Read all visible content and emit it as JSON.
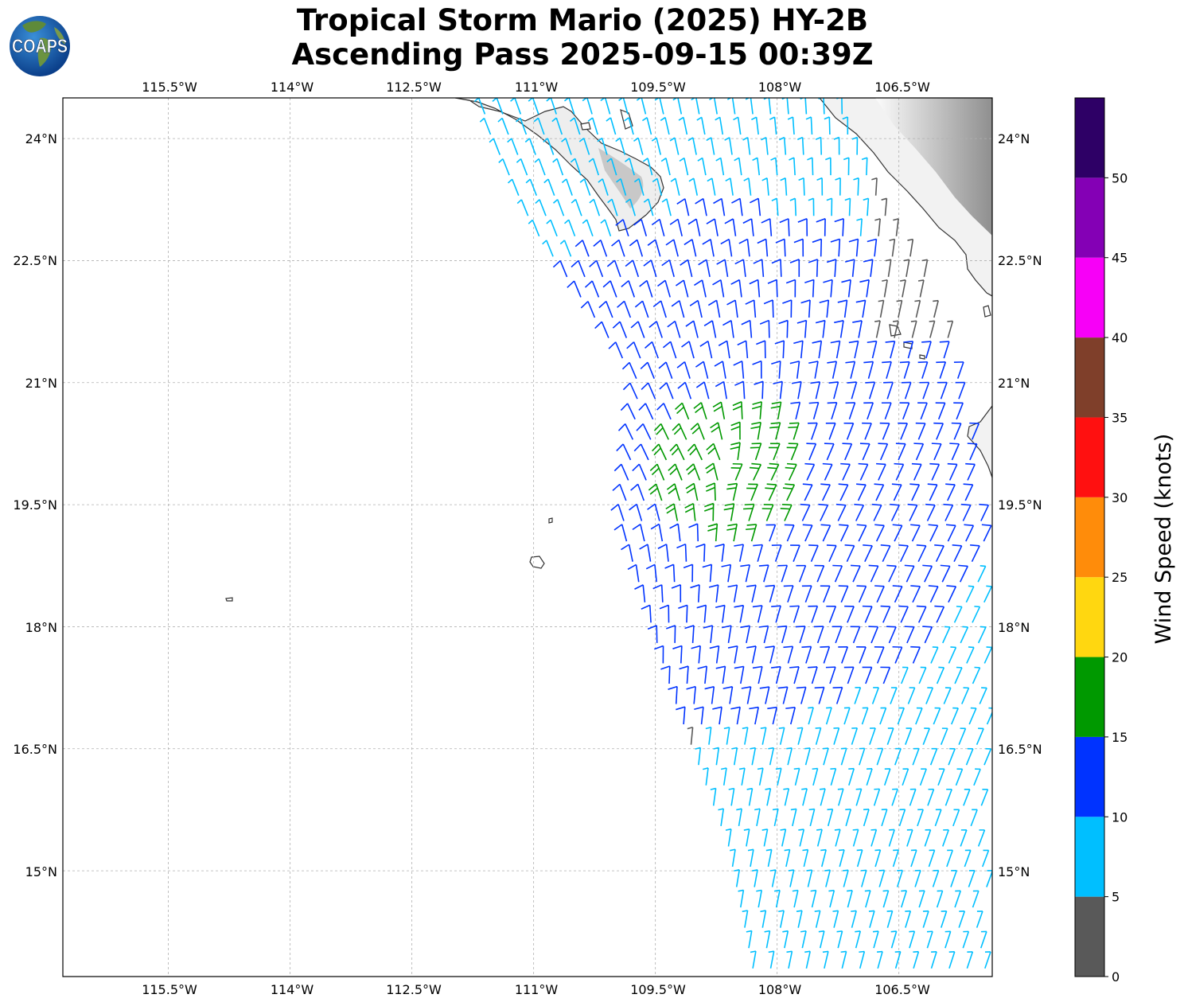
{
  "title": {
    "line1": "Tropical Storm Mario (2025) HY-2B",
    "line2": "Ascending Pass 2025-09-15 00:39Z"
  },
  "logo": {
    "text": "COAPS",
    "icon": "globe-icon"
  },
  "map": {
    "lon_labels": [
      "115.5°W",
      "114°W",
      "112.5°W",
      "111°W",
      "109.5°W",
      "108°W",
      "106.5°W"
    ],
    "lat_labels": [
      "24°N",
      "22.5°N",
      "21°N",
      "19.5°N",
      "18°N",
      "16.5°N",
      "15°N"
    ],
    "lon_range": [
      -116.8,
      -105.35
    ],
    "lat_range": [
      13.7,
      24.5
    ],
    "gridlines": true
  },
  "colorbar": {
    "label": "Wind Speed (knots)",
    "ticks": [
      "0",
      "5",
      "10",
      "15",
      "20",
      "25",
      "30",
      "35",
      "40",
      "45",
      "50"
    ],
    "max": 55,
    "colors": [
      "#595959",
      "#00bfff",
      "#0033ff",
      "#009900",
      "#ffd710",
      "#ff8c0a",
      "#ff1010",
      "#7f3f2a",
      "#f700f7",
      "#8400b5",
      "#2e0066"
    ]
  },
  "wind_data": {
    "swath_west_edge": [
      [
        -111.6,
        24.2
      ],
      [
        -111.0,
        22.9
      ],
      [
        -109.7,
        21.0
      ],
      [
        -109.9,
        19.2
      ],
      [
        -109.3,
        17.2
      ],
      [
        -108.6,
        15.3
      ],
      [
        -108.3,
        13.8
      ]
    ],
    "swath_east_edge": [
      [
        -107.2,
        24.4
      ],
      [
        -106.3,
        22.6
      ],
      [
        -105.6,
        20.8
      ],
      [
        -105.4,
        18.4
      ],
      [
        -105.4,
        16.0
      ],
      [
        -105.4,
        13.8
      ]
    ],
    "storm_center": [
      -108.6,
      19.9
    ],
    "speed_bands_knots": [
      {
        "zone": "near-coast",
        "speed": 3
      },
      {
        "zone": "outer",
        "speed": 8
      },
      {
        "zone": "inner",
        "speed": 12
      },
      {
        "zone": "core",
        "speed": 17
      }
    ]
  }
}
